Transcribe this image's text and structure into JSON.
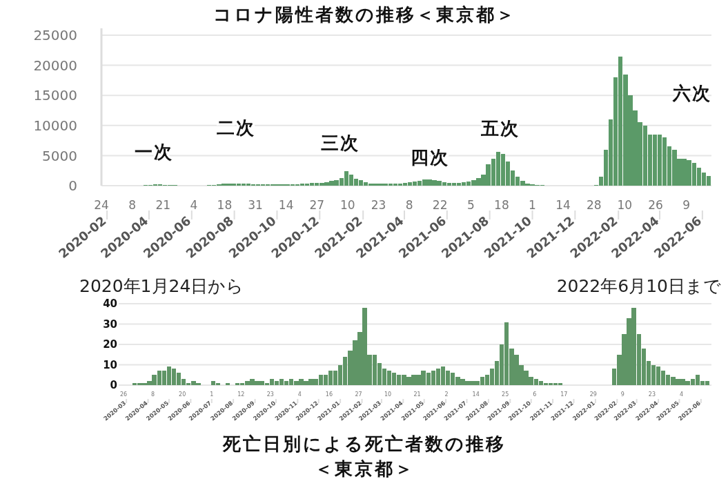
{
  "chart_data": [
    {
      "type": "bar",
      "title": "コロナ陽性者数の推移＜東京都＞",
      "color": "#5b9a68",
      "grid": "y",
      "xlim": [
        "2020-01-24",
        "2022-06-10"
      ],
      "ylim": [
        0,
        25000
      ],
      "yticks": [
        0,
        5000,
        10000,
        15000,
        20000,
        25000
      ],
      "xticks": [
        {
          "value": "2020-01-24",
          "label": "24"
        },
        {
          "value": "2020-03-08",
          "label": "8"
        },
        {
          "value": "2020-04-21",
          "label": "21"
        },
        {
          "value": "2020-06-04",
          "label": "4"
        },
        {
          "value": "2020-07-18",
          "label": "18"
        },
        {
          "value": "2020-08-31",
          "label": "31"
        },
        {
          "value": "2020-10-14",
          "label": "14"
        },
        {
          "value": "2020-11-27",
          "label": "27"
        },
        {
          "value": "2021-01-10",
          "label": "10"
        },
        {
          "value": "2021-02-23",
          "label": "23"
        },
        {
          "value": "2021-04-08",
          "label": "8"
        },
        {
          "value": "2021-05-22",
          "label": "22"
        },
        {
          "value": "2021-07-05",
          "label": "5"
        },
        {
          "value": "2021-08-18",
          "label": "18"
        },
        {
          "value": "2021-10-01",
          "label": "1"
        },
        {
          "value": "2021-11-14",
          "label": "14"
        },
        {
          "value": "2021-12-28",
          "label": "28"
        },
        {
          "value": "2022-02-10",
          "label": "10"
        },
        {
          "value": "2022-03-26",
          "label": "26"
        },
        {
          "value": "2022-05-09",
          "label": "9"
        }
      ],
      "x2lim": [
        "2020-01-24",
        "2022-06-10"
      ],
      "x2ticks": [
        {
          "value": "2020-02-01",
          "label": "2020-02"
        },
        {
          "value": "2020-04-01",
          "label": "2020-04"
        },
        {
          "value": "2020-06-01",
          "label": "2020-06"
        },
        {
          "value": "2020-08-01",
          "label": "2020-08"
        },
        {
          "value": "2020-10-01",
          "label": "2020-10"
        },
        {
          "value": "2020-12-01",
          "label": "2020-12"
        },
        {
          "value": "2021-02-01",
          "label": "2021-02"
        },
        {
          "value": "2021-04-01",
          "label": "2021-04"
        },
        {
          "value": "2021-06-01",
          "label": "2021-06"
        },
        {
          "value": "2021-08-01",
          "label": "2021-08"
        },
        {
          "value": "2021-10-01",
          "label": "2021-10"
        },
        {
          "value": "2021-12-01",
          "label": "2021-12"
        },
        {
          "value": "2022-02-01",
          "label": "2022-02"
        },
        {
          "value": "2022-04-01",
          "label": "2022-04"
        },
        {
          "value": "2022-06-01",
          "label": "2022-06"
        }
      ],
      "annotations": [
        "一次",
        "二次",
        "三次",
        "四次",
        "五次",
        "六次"
      ],
      "x": [
        "2020-01-24",
        "2020-01-31",
        "2020-02-07",
        "2020-02-14",
        "2020-02-21",
        "2020-02-28",
        "2020-03-06",
        "2020-03-13",
        "2020-03-20",
        "2020-03-27",
        "2020-04-03",
        "2020-04-10",
        "2020-04-17",
        "2020-04-24",
        "2020-05-01",
        "2020-05-08",
        "2020-05-15",
        "2020-05-22",
        "2020-05-29",
        "2020-06-05",
        "2020-06-12",
        "2020-06-19",
        "2020-06-26",
        "2020-07-03",
        "2020-07-10",
        "2020-07-17",
        "2020-07-24",
        "2020-07-31",
        "2020-08-07",
        "2020-08-14",
        "2020-08-21",
        "2020-08-28",
        "2020-09-04",
        "2020-09-11",
        "2020-09-18",
        "2020-09-25",
        "2020-10-02",
        "2020-10-09",
        "2020-10-16",
        "2020-10-23",
        "2020-10-30",
        "2020-11-06",
        "2020-11-13",
        "2020-11-20",
        "2020-11-27",
        "2020-12-04",
        "2020-12-11",
        "2020-12-18",
        "2020-12-25",
        "2021-01-01",
        "2021-01-08",
        "2021-01-15",
        "2021-01-22",
        "2021-01-29",
        "2021-02-05",
        "2021-02-12",
        "2021-02-19",
        "2021-02-26",
        "2021-03-05",
        "2021-03-12",
        "2021-03-19",
        "2021-03-26",
        "2021-04-02",
        "2021-04-09",
        "2021-04-16",
        "2021-04-23",
        "2021-04-30",
        "2021-05-07",
        "2021-05-14",
        "2021-05-21",
        "2021-05-28",
        "2021-06-04",
        "2021-06-11",
        "2021-06-18",
        "2021-06-25",
        "2021-07-02",
        "2021-07-09",
        "2021-07-16",
        "2021-07-23",
        "2021-07-30",
        "2021-08-06",
        "2021-08-13",
        "2021-08-20",
        "2021-08-27",
        "2021-09-03",
        "2021-09-10",
        "2021-09-17",
        "2021-09-24",
        "2021-10-01",
        "2021-10-08",
        "2021-10-15",
        "2021-10-22",
        "2021-10-29",
        "2021-11-05",
        "2021-11-12",
        "2021-11-19",
        "2021-11-26",
        "2021-12-03",
        "2021-12-10",
        "2021-12-17",
        "2021-12-24",
        "2021-12-31",
        "2022-01-07",
        "2022-01-14",
        "2022-01-21",
        "2022-01-28",
        "2022-02-04",
        "2022-02-11",
        "2022-02-18",
        "2022-02-25",
        "2022-03-04",
        "2022-03-11",
        "2022-03-18",
        "2022-03-25",
        "2022-04-01",
        "2022-04-08",
        "2022-04-15",
        "2022-04-22",
        "2022-04-29",
        "2022-05-06",
        "2022-05-13",
        "2022-05-20",
        "2022-05-27",
        "2022-06-03",
        "2022-06-10"
      ],
      "values": [
        0,
        0,
        0,
        0,
        0,
        0,
        0,
        0,
        0,
        100,
        100,
        200,
        200,
        100,
        100,
        100,
        0,
        0,
        0,
        0,
        0,
        0,
        100,
        100,
        200,
        300,
        300,
        400,
        400,
        300,
        300,
        200,
        200,
        200,
        200,
        200,
        200,
        200,
        200,
        200,
        200,
        300,
        400,
        500,
        500,
        500,
        600,
        800,
        900,
        1300,
        2400,
        1800,
        1200,
        900,
        600,
        400,
        400,
        300,
        300,
        300,
        400,
        400,
        500,
        600,
        700,
        800,
        1000,
        1000,
        900,
        800,
        600,
        500,
        500,
        500,
        600,
        700,
        900,
        1300,
        1800,
        3500,
        4500,
        5600,
        5300,
        4000,
        2500,
        1500,
        800,
        400,
        200,
        100,
        100,
        0,
        0,
        0,
        0,
        0,
        0,
        0,
        0,
        0,
        0,
        100,
        1500,
        6000,
        11000,
        18000,
        21500,
        18500,
        15000,
        12500,
        10500,
        10000,
        8500,
        8500,
        8500,
        8000,
        6500,
        6000,
        4500,
        4500,
        4300,
        3800,
        3000,
        2200,
        1600
      ]
    },
    {
      "type": "bar",
      "title": "死亡日別による死亡者数の推移",
      "subtitle": "＜東京都＞",
      "color": "#5f9566",
      "grid": "y",
      "xlim": [
        "2020-02-19",
        "2022-06-12"
      ],
      "ylim": [
        0,
        40
      ],
      "yticks": [
        0,
        10,
        20,
        30,
        40
      ],
      "xticks": [
        {
          "value": "2020-02-26",
          "label": "26"
        },
        {
          "value": "2020-04-08",
          "label": "8"
        },
        {
          "value": "2020-05-20",
          "label": "20"
        },
        {
          "value": "2020-07-01",
          "label": "1"
        },
        {
          "value": "2020-08-12",
          "label": "12"
        },
        {
          "value": "2020-09-23",
          "label": "23"
        },
        {
          "value": "2020-11-04",
          "label": "4"
        },
        {
          "value": "2020-12-16",
          "label": "16"
        },
        {
          "value": "2021-01-27",
          "label": "27"
        },
        {
          "value": "2021-03-10",
          "label": "10"
        },
        {
          "value": "2021-04-21",
          "label": "21"
        },
        {
          "value": "2021-06-02",
          "label": "2"
        },
        {
          "value": "2021-07-14",
          "label": "14"
        },
        {
          "value": "2021-08-25",
          "label": "25"
        },
        {
          "value": "2021-10-06",
          "label": "6"
        },
        {
          "value": "2021-11-17",
          "label": "17"
        },
        {
          "value": "2021-12-29",
          "label": "29"
        },
        {
          "value": "2022-02-09",
          "label": "9"
        },
        {
          "value": "2022-03-23",
          "label": "23"
        },
        {
          "value": "2022-05-04",
          "label": "4"
        }
      ],
      "x2lim": [
        "2020-02-19",
        "2022-06-12"
      ],
      "x2ticks": [
        {
          "value": "2020-03-01",
          "label": "2020-03"
        },
        {
          "value": "2020-04-01",
          "label": "2020-04"
        },
        {
          "value": "2020-05-01",
          "label": "2020-05"
        },
        {
          "value": "2020-06-01",
          "label": "2020-06"
        },
        {
          "value": "2020-07-01",
          "label": "2020-07"
        },
        {
          "value": "2020-08-01",
          "label": "2020-08"
        },
        {
          "value": "2020-09-01",
          "label": "2020-09"
        },
        {
          "value": "2020-10-01",
          "label": "2020-10"
        },
        {
          "value": "2020-11-01",
          "label": "2020-11"
        },
        {
          "value": "2020-12-01",
          "label": "2020-12"
        },
        {
          "value": "2021-01-01",
          "label": "2021-01"
        },
        {
          "value": "2021-02-01",
          "label": "2021-02"
        },
        {
          "value": "2021-03-01",
          "label": "2021-03"
        },
        {
          "value": "2021-04-01",
          "label": "2021-04"
        },
        {
          "value": "2021-05-01",
          "label": "2021-05"
        },
        {
          "value": "2021-06-01",
          "label": "2021-06"
        },
        {
          "value": "2021-07-01",
          "label": "2021-07"
        },
        {
          "value": "2021-08-01",
          "label": "2021-08"
        },
        {
          "value": "2021-09-01",
          "label": "2021-09"
        },
        {
          "value": "2021-10-01",
          "label": "2021-10"
        },
        {
          "value": "2021-11-01",
          "label": "2021-11"
        },
        {
          "value": "2021-12-01",
          "label": "2021-12"
        },
        {
          "value": "2022-01-01",
          "label": "2022-01"
        },
        {
          "value": "2022-02-01",
          "label": "2022-02"
        },
        {
          "value": "2022-03-01",
          "label": "2022-03"
        },
        {
          "value": "2022-04-01",
          "label": "2022-04"
        },
        {
          "value": "2022-05-01",
          "label": "2022-05"
        },
        {
          "value": "2022-06-01",
          "label": "2022-06"
        }
      ],
      "annotations": [
        "2020年1月24日から",
        "2022年6月10日まで"
      ],
      "x": [
        "2020-02-21",
        "2020-02-28",
        "2020-03-06",
        "2020-03-13",
        "2020-03-20",
        "2020-03-27",
        "2020-04-03",
        "2020-04-10",
        "2020-04-17",
        "2020-04-24",
        "2020-05-01",
        "2020-05-08",
        "2020-05-15",
        "2020-05-22",
        "2020-05-29",
        "2020-06-05",
        "2020-06-12",
        "2020-06-19",
        "2020-06-26",
        "2020-07-03",
        "2020-07-10",
        "2020-07-17",
        "2020-07-24",
        "2020-07-31",
        "2020-08-07",
        "2020-08-14",
        "2020-08-21",
        "2020-08-28",
        "2020-09-04",
        "2020-09-11",
        "2020-09-18",
        "2020-09-25",
        "2020-10-02",
        "2020-10-09",
        "2020-10-16",
        "2020-10-23",
        "2020-10-30",
        "2020-11-06",
        "2020-11-13",
        "2020-11-20",
        "2020-11-27",
        "2020-12-04",
        "2020-12-11",
        "2020-12-18",
        "2020-12-25",
        "2021-01-01",
        "2021-01-08",
        "2021-01-15",
        "2021-01-22",
        "2021-01-29",
        "2021-02-05",
        "2021-02-12",
        "2021-02-19",
        "2021-02-26",
        "2021-03-05",
        "2021-03-12",
        "2021-03-19",
        "2021-03-26",
        "2021-04-02",
        "2021-04-09",
        "2021-04-16",
        "2021-04-23",
        "2021-04-30",
        "2021-05-07",
        "2021-05-14",
        "2021-05-21",
        "2021-05-28",
        "2021-06-04",
        "2021-06-11",
        "2021-06-18",
        "2021-06-25",
        "2021-07-02",
        "2021-07-09",
        "2021-07-16",
        "2021-07-23",
        "2021-07-30",
        "2021-08-06",
        "2021-08-13",
        "2021-08-20",
        "2021-08-27",
        "2021-09-03",
        "2021-09-10",
        "2021-09-17",
        "2021-09-24",
        "2021-10-01",
        "2021-10-08",
        "2021-10-15",
        "2021-10-22",
        "2021-10-29",
        "2021-11-05",
        "2021-11-12",
        "2021-11-19",
        "2021-11-26",
        "2021-12-03",
        "2021-12-10",
        "2021-12-17",
        "2021-12-24",
        "2021-12-31",
        "2022-01-07",
        "2022-01-14",
        "2022-01-21",
        "2022-01-28",
        "2022-02-04",
        "2022-02-11",
        "2022-02-18",
        "2022-02-25",
        "2022-03-04",
        "2022-03-11",
        "2022-03-18",
        "2022-03-25",
        "2022-04-01",
        "2022-04-08",
        "2022-04-15",
        "2022-04-22",
        "2022-04-29",
        "2022-05-06",
        "2022-05-13",
        "2022-05-20",
        "2022-05-27",
        "2022-06-03",
        "2022-06-10"
      ],
      "values": [
        0,
        0,
        0,
        1,
        1,
        1,
        2,
        5,
        7,
        7,
        9,
        8,
        6,
        3,
        1,
        2,
        1,
        0,
        0,
        2,
        1,
        0,
        1,
        0,
        1,
        1,
        2,
        3,
        2,
        2,
        1,
        3,
        2,
        3,
        2,
        3,
        2,
        3,
        2,
        3,
        3,
        5,
        5,
        7,
        7,
        10,
        14,
        17,
        22,
        26,
        38,
        15,
        15,
        11,
        8,
        7,
        6,
        5,
        5,
        4,
        5,
        5,
        7,
        6,
        7,
        8,
        9,
        7,
        6,
        4,
        3,
        2,
        2,
        2,
        4,
        5,
        8,
        12,
        20,
        31,
        18,
        15,
        10,
        7,
        4,
        3,
        2,
        1,
        1,
        1,
        1,
        0,
        0,
        0,
        0,
        0,
        0,
        0,
        0,
        0,
        0,
        8,
        15,
        25,
        33,
        38,
        25,
        18,
        12,
        10,
        9,
        7,
        5,
        4,
        3,
        3,
        2,
        3,
        5,
        2,
        2
      ]
    }
  ]
}
